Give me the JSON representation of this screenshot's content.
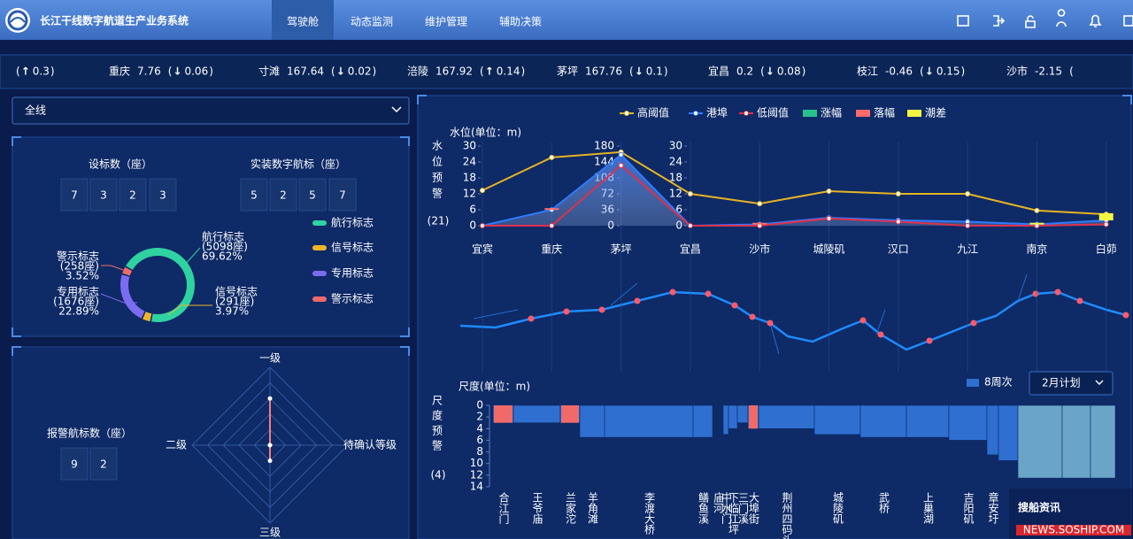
{
  "header": {
    "title": "长江干线数字航道生产业务系统",
    "tabs": [
      "驾驶舱",
      "动态监测",
      "维护管理",
      "辅助决策"
    ]
  },
  "ticker": [
    {
      "lp": "(",
      "arrow": "↑",
      "change": 0.3,
      "rp": ")"
    },
    {
      "name": "重庆",
      "value": 7.76,
      "lp": "(",
      "arrow": "↓",
      "change": 0.06,
      "rp": ")"
    },
    {
      "name": "寸滩",
      "value": 167.64,
      "lp": "(",
      "arrow": "↓",
      "change": 0.02,
      "rp": ")"
    },
    {
      "name": "涪陵",
      "value": 167.92,
      "lp": "(",
      "arrow": "↑",
      "change": 0.14,
      "rp": ")"
    },
    {
      "name": "茅坪",
      "value": 167.76,
      "lp": "(",
      "arrow": "↓",
      "change": 0.1,
      "rp": ")"
    },
    {
      "name": "宜昌",
      "value": 0.2,
      "lp": "(",
      "arrow": "↓",
      "change": 0.08,
      "rp": ")"
    },
    {
      "name": "枝江",
      "value": -0.46,
      "lp": "(",
      "arrow": "↓",
      "change": 0.15,
      "rp": ")"
    },
    {
      "name": "沙市",
      "value": -2.15,
      "lp": "("
    }
  ],
  "filter": {
    "selected": "全线"
  },
  "stats": {
    "total_label": "设标数（座）",
    "total_digits": [
      "7",
      "3",
      "2",
      "3"
    ],
    "digital_label": "实装数字航标（座）",
    "digital_digits": [
      "5",
      "2",
      "5",
      "7"
    ],
    "alarm_label": "报警航标数（座）",
    "alarm_digits": [
      "9",
      "2"
    ]
  },
  "chart_data": [
    {
      "type": "pie",
      "donut": true,
      "categories": [
        "航行标志",
        "信号标志",
        "专用标志",
        "警示标志"
      ],
      "values": [
        5098,
        291,
        1676,
        258
      ],
      "value_labels": [
        "(5098座)",
        "(291座)",
        "(1676座)",
        "(258座)"
      ],
      "percent_labels": [
        "69.62%",
        "3.97%",
        "22.89%",
        "3.52%"
      ],
      "colors": [
        "#2fd3a0",
        "#f0b429",
        "#7b6cf0",
        "#f06a6a"
      ]
    },
    {
      "type": "radar",
      "categories": [
        "一级",
        "待确认等级",
        "三级",
        "二级"
      ],
      "values": [
        6,
        0,
        2,
        0
      ],
      "rlim": [
        0,
        10
      ],
      "color": "#ff7a7a"
    },
    {
      "type": "line",
      "title": "水位(单位：m)",
      "side_label": "水位预警",
      "side_count": "(21)",
      "categories": [
        "宜宾",
        "重庆",
        "茅坪",
        "宜昌",
        "沙市",
        "城陵矶",
        "汉口",
        "九江",
        "南京",
        "白茆"
      ],
      "series": [
        {
          "name": "高阈值",
          "color": "#e6b422",
          "kind": "line",
          "values": [
            13.3,
            25.7,
            27.7,
            12,
            8.3,
            13,
            12,
            12,
            5.7,
            4.3
          ]
        },
        {
          "name": "港埠",
          "color": "#2f7bff",
          "kind": "area",
          "values": [
            0,
            6,
            26.7,
            0,
            0.5,
            3,
            2,
            1.5,
            0.5,
            2
          ]
        },
        {
          "name": "低阈值",
          "color": "#e0304a",
          "kind": "line",
          "values": [
            0,
            0,
            22.7,
            0,
            0,
            2.7,
            1.5,
            0,
            0,
            0.5
          ]
        },
        {
          "name": "涨幅",
          "color": "#27c28b",
          "kind": "bar",
          "values": [
            null,
            null,
            null,
            null,
            null,
            null,
            null,
            null,
            null,
            null
          ]
        },
        {
          "name": "落幅",
          "color": "#ff6b6b",
          "kind": "bar",
          "values": [
            null,
            0.6,
            null,
            null,
            0.6,
            null,
            null,
            null,
            null,
            null
          ]
        },
        {
          "name": "潮差",
          "color": "#f5f542",
          "kind": "bar",
          "values": [
            null,
            null,
            null,
            null,
            null,
            null,
            null,
            null,
            0.6,
            2.7
          ]
        }
      ],
      "ylim": [
        0,
        30
      ],
      "yticks": [
        0,
        6,
        12,
        18,
        24,
        30
      ],
      "y2lim": [
        0,
        180
      ],
      "y2ticks": [
        0,
        36,
        72,
        108,
        144,
        180
      ]
    },
    {
      "type": "bar",
      "title": "尺度(单位：m)",
      "side_label": "尺度预警",
      "side_count": "(4)",
      "plan_select": "2月计划",
      "inverted": true,
      "categories": [
        "合江门",
        "王爷庙",
        "兰家沱",
        "羊角滩",
        "李渡大桥",
        "鳝鱼溪",
        "庙河",
        "中水门",
        "下临江坪",
        "三门溪",
        "大埠街",
        "荆州四码头",
        "城陵矶",
        "武桥",
        "上巢湖",
        "吉阳矶",
        "章安圩",
        null,
        null,
        null,
        null
      ],
      "series": [
        {
          "name": "8周次",
          "color": "#2f6fd0",
          "values": [
            3,
            3,
            3,
            5.5,
            5.5,
            5.5,
            null,
            5,
            4,
            3,
            4,
            4,
            5,
            5.5,
            5.5,
            6,
            8.5,
            9.5,
            12.5,
            12.5,
            12.5
          ]
        }
      ],
      "warnings": [
        3,
        null,
        3,
        null,
        null,
        null,
        null,
        null,
        null,
        null,
        4,
        null,
        null,
        null,
        null,
        null,
        null,
        null,
        null,
        null,
        null
      ],
      "warning_color": "#f06a6a",
      "highlight": [
        18,
        19,
        20
      ],
      "highlight_color": "#6aa5c8",
      "ylim": [
        0,
        14
      ],
      "yticks": [
        0,
        2,
        4,
        6,
        8,
        10,
        12,
        14
      ]
    }
  ],
  "watermark": {
    "text": "搜船资讯",
    "url": "NEWS.SOSHIP.COM"
  }
}
